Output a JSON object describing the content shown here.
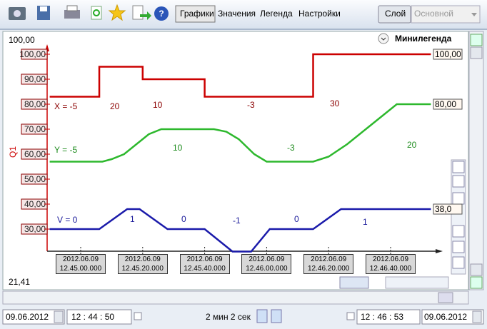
{
  "toolbar": {
    "tabs": [
      "Графики",
      "Значения",
      "Легенда",
      "Настройки"
    ],
    "layer_button": "Слой",
    "layer_select": "Основной"
  },
  "chart": {
    "top_value": "100,00",
    "bottom_value": "21,41",
    "axis_label": "Q1",
    "minilegend": "Минилегенда",
    "ylim": [
      20,
      100
    ],
    "yticks": [
      {
        "value": 30,
        "label": "30,00"
      },
      {
        "value": 40,
        "label": "40,00"
      },
      {
        "value": 50,
        "label": "50,00"
      },
      {
        "value": 60,
        "label": "60,00"
      },
      {
        "value": 70,
        "label": "70,00"
      },
      {
        "value": 80,
        "label": "80,00"
      },
      {
        "value": 90,
        "label": "90,00"
      },
      {
        "value": 100,
        "label": "100,00"
      }
    ],
    "xticks": [
      {
        "value": 45900,
        "label": "2012.06.09 12.45.00.000"
      },
      {
        "value": 45920,
        "label": "2012.06.09 12.45.20.000"
      },
      {
        "value": 45940,
        "label": "2012.06.09 12.45.40.000"
      },
      {
        "value": 45960,
        "label": "2012.06.09 12.46.00.000"
      },
      {
        "value": 45980,
        "label": "2012.06.09 12.46.20.000"
      },
      {
        "value": 46000,
        "label": "2012.06.09 12.46.40.000"
      }
    ],
    "series": [
      {
        "color": "#cc0000",
        "end_label": "100,00",
        "x": [
          45890,
          45906,
          45906,
          45920,
          45920,
          45940,
          45940,
          45975,
          45975,
          46013
        ],
        "values": [
          83,
          83,
          95,
          95,
          90,
          90,
          83,
          83,
          100,
          100
        ]
      },
      {
        "color": "#2db82d",
        "end_label": "80,00",
        "x": [
          45890,
          45907,
          45910,
          45914,
          45918,
          45922,
          45926,
          45943,
          45947,
          45951,
          45956,
          45960,
          45975,
          45980,
          45986,
          45992,
          45998,
          46002,
          46013
        ],
        "values": [
          57,
          57,
          58,
          60,
          64,
          68,
          70,
          70,
          69,
          66,
          60,
          57,
          57,
          59,
          64,
          70,
          76,
          80,
          80
        ]
      },
      {
        "color": "#1a1aaa",
        "end_label": "38,0",
        "x": [
          45890,
          45906,
          45915,
          45919,
          45928,
          45940,
          45949,
          45955,
          45961,
          45975,
          45984,
          46013
        ],
        "values": [
          30,
          30,
          38,
          38,
          30,
          30,
          21,
          21,
          30,
          30,
          38,
          38
        ]
      }
    ],
    "annotations": [
      {
        "text": "X = -5",
        "color": "#8b0000"
      },
      {
        "text": "20",
        "color": "#8b0000"
      },
      {
        "text": "10",
        "color": "#8b0000"
      },
      {
        "text": "-3",
        "color": "#8b0000"
      },
      {
        "text": "30",
        "color": "#8b0000"
      },
      {
        "text": "Y = -5",
        "color": "#1e8c1e"
      },
      {
        "text": "10",
        "color": "#1e8c1e"
      },
      {
        "text": "-3",
        "color": "#1e8c1e"
      },
      {
        "text": "20",
        "color": "#1e8c1e"
      },
      {
        "text": "V = 0",
        "color": "#1a1a9a"
      },
      {
        "text": "1",
        "color": "#1a1a9a"
      },
      {
        "text": "0",
        "color": "#1a1a9a"
      },
      {
        "text": "-1",
        "color": "#1a1a9a"
      },
      {
        "text": "0",
        "color": "#1a1a9a"
      },
      {
        "text": "1",
        "color": "#1a1a9a"
      }
    ]
  },
  "footer": {
    "start_date": "09.06.2012",
    "start_time": "12 : 44 : 50",
    "duration": "2 мин 2 сек",
    "end_time": "12 : 46 : 53",
    "end_date": "09.06.2012"
  }
}
